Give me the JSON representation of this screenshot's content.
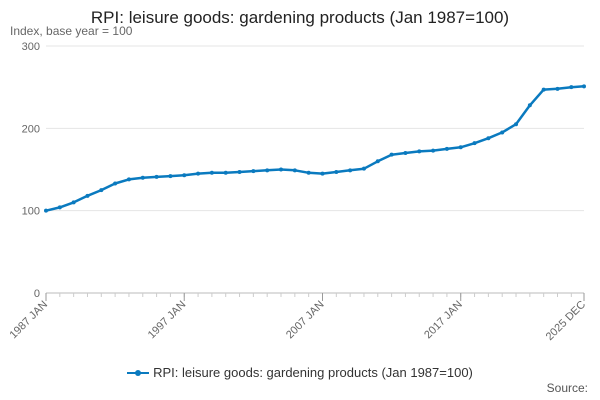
{
  "chart_title": "RPI: leisure goods: gardening products (Jan 1987=100)",
  "source_label": "Source:",
  "chart_data": {
    "type": "line",
    "title": "RPI: leisure goods: gardening products (Jan 1987=100)",
    "ylabel": "Index, base year = 100",
    "xlabel": "",
    "ylim": [
      0,
      300
    ],
    "yticks": [
      0,
      100,
      200,
      300
    ],
    "xlim": [
      1987.0,
      2025.917
    ],
    "xticks": [
      {
        "value": 1987.0,
        "label": "1987 JAN"
      },
      {
        "value": 1997.0,
        "label": "1997 JAN"
      },
      {
        "value": 2007.0,
        "label": "2007 JAN"
      },
      {
        "value": 2017.0,
        "label": "2017 JAN"
      },
      {
        "value": 2025.917,
        "label": "2025 DEC"
      }
    ],
    "grid": true,
    "legend_position": "bottom",
    "color": "#0a7abf",
    "series": [
      {
        "name": "RPI: leisure goods: gardening products (Jan 1987=100)",
        "points": [
          [
            1987.0,
            100
          ],
          [
            1988.0,
            104
          ],
          [
            1989.0,
            110
          ],
          [
            1990.0,
            118
          ],
          [
            1991.0,
            125
          ],
          [
            1992.0,
            133
          ],
          [
            1993.0,
            138
          ],
          [
            1994.0,
            140
          ],
          [
            1995.0,
            141
          ],
          [
            1996.0,
            142
          ],
          [
            1997.0,
            143
          ],
          [
            1998.0,
            145
          ],
          [
            1999.0,
            146
          ],
          [
            2000.0,
            146
          ],
          [
            2001.0,
            147
          ],
          [
            2002.0,
            148
          ],
          [
            2003.0,
            149
          ],
          [
            2004.0,
            150
          ],
          [
            2005.0,
            149
          ],
          [
            2006.0,
            146
          ],
          [
            2007.0,
            145
          ],
          [
            2008.0,
            147
          ],
          [
            2009.0,
            149
          ],
          [
            2010.0,
            151
          ],
          [
            2011.0,
            160
          ],
          [
            2012.0,
            168
          ],
          [
            2013.0,
            170
          ],
          [
            2014.0,
            172
          ],
          [
            2015.0,
            173
          ],
          [
            2016.0,
            175
          ],
          [
            2017.0,
            177
          ],
          [
            2018.0,
            182
          ],
          [
            2019.0,
            188
          ],
          [
            2020.0,
            195
          ],
          [
            2021.0,
            205
          ],
          [
            2022.0,
            228
          ],
          [
            2023.0,
            247
          ],
          [
            2024.0,
            248
          ],
          [
            2025.0,
            250
          ],
          [
            2025.917,
            251
          ]
        ]
      }
    ]
  }
}
